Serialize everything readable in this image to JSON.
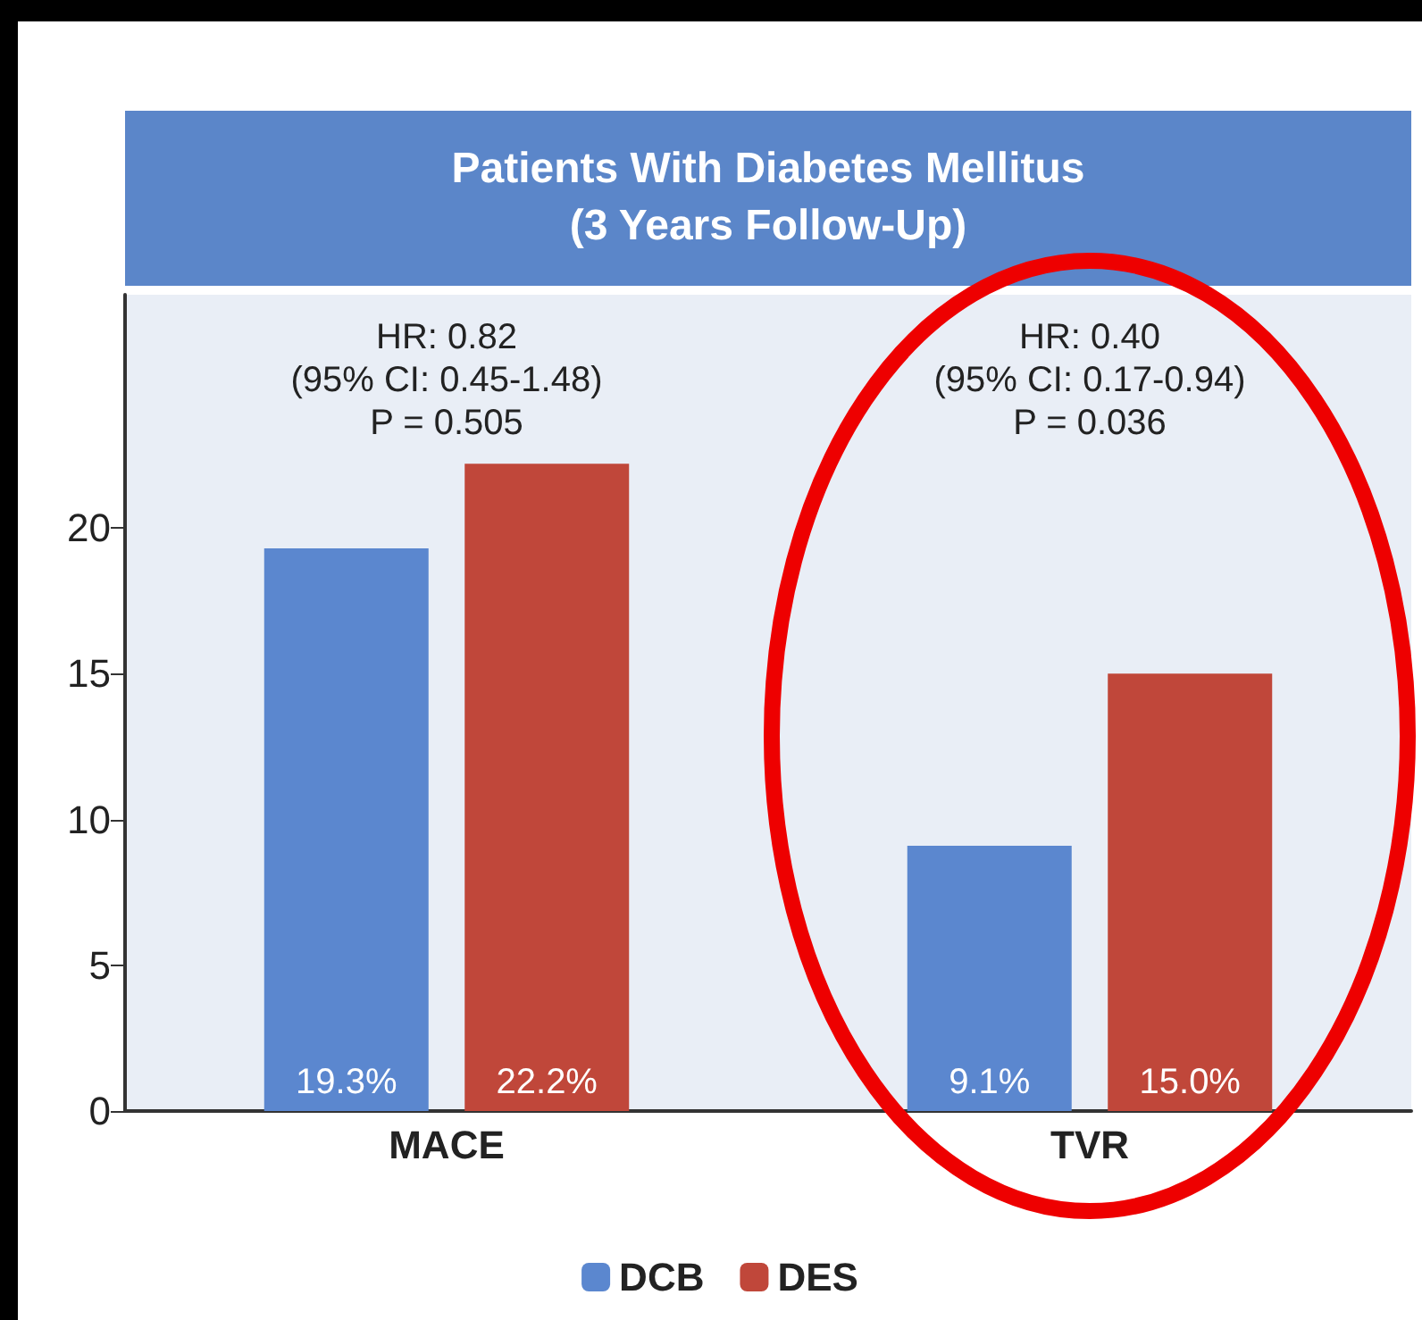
{
  "chart_data": {
    "type": "bar",
    "title": "Patients With Diabetes Mellitus\n(3 Years Follow-Up)",
    "categories": [
      "MACE",
      "TVR"
    ],
    "series": [
      {
        "name": "DCB",
        "color": "#5b87cf",
        "values": [
          19.3,
          9.1
        ],
        "value_labels": [
          "19.3%",
          "9.1%"
        ]
      },
      {
        "name": "DES",
        "color": "#c0473a",
        "values": [
          22.2,
          15.0
        ],
        "value_labels": [
          "22.2%",
          "15.0%"
        ]
      }
    ],
    "ylim": [
      0,
      28
    ],
    "yticks": [
      0,
      5,
      10,
      15,
      20
    ],
    "grid": false,
    "legend": "bottom",
    "annotations": [
      "HR: 0.82\n(95% CI: 0.45-1.48)\nP = 0.505",
      "HR: 0.40\n(95% CI: 0.17-0.94)\nP = 0.036"
    ]
  }
}
